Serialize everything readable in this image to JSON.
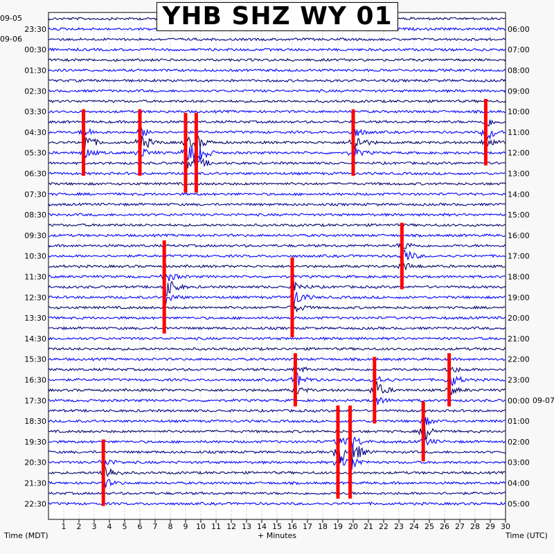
{
  "chart_data": {
    "type": "helicorder",
    "title": "YHB SHZ WY 01",
    "xlabel": "+ Minutes",
    "left_axis_label": "Time (MDT)",
    "right_axis_label": "Time (UTC)",
    "x_ticks": [
      "1",
      "2",
      "3",
      "4",
      "5",
      "6",
      "7",
      "8",
      "9",
      "10",
      "11",
      "12",
      "13",
      "14",
      "15",
      "16",
      "17",
      "18",
      "19",
      "20",
      "21",
      "22",
      "23",
      "24",
      "25",
      "26",
      "27",
      "28",
      "29",
      "30"
    ],
    "xlim": [
      0,
      30
    ],
    "date_labels_left": [
      "09-05",
      "09-06"
    ],
    "date_labels_right": [
      "09-07"
    ],
    "left_time_labels": [
      "23:30",
      "00:30",
      "01:30",
      "02:30",
      "03:30",
      "04:30",
      "05:30",
      "06:30",
      "07:30",
      "08:30",
      "09:30",
      "10:30",
      "11:30",
      "12:30",
      "13:30",
      "14:30",
      "15:30",
      "16:30",
      "17:30",
      "18:30",
      "19:30",
      "20:30",
      "21:30",
      "22:30"
    ],
    "right_time_labels": [
      "06:00",
      "07:00",
      "08:00",
      "09:00",
      "10:00",
      "11:00",
      "12:00",
      "13:00",
      "14:00",
      "15:00",
      "16:00",
      "17:00",
      "18:00",
      "19:00",
      "20:00",
      "21:00",
      "22:00",
      "23:00",
      "00:00",
      "01:00",
      "02:00",
      "03:00",
      "04:00",
      "05:00"
    ],
    "trace_colors": [
      "#000066",
      "#0000ff",
      "#00008b",
      "#0000ff"
    ],
    "trace_count": 48,
    "highlight_color": "#ff0000",
    "events": [
      {
        "minute": 2.3,
        "trace": 12,
        "amplitude": 1.0
      },
      {
        "minute": 6.0,
        "trace": 12,
        "amplitude": 1.0
      },
      {
        "minute": 9.0,
        "trace": 13,
        "amplitude": 1.2
      },
      {
        "minute": 9.7,
        "trace": 13,
        "amplitude": 1.2
      },
      {
        "minute": 20.0,
        "trace": 12,
        "amplitude": 1.0
      },
      {
        "minute": 28.7,
        "trace": 11,
        "amplitude": 1.0
      },
      {
        "minute": 7.6,
        "trace": 26,
        "amplitude": 1.4
      },
      {
        "minute": 16.0,
        "trace": 27,
        "amplitude": 1.2
      },
      {
        "minute": 23.2,
        "trace": 23,
        "amplitude": 1.0
      },
      {
        "minute": 16.2,
        "trace": 35,
        "amplitude": 0.8
      },
      {
        "minute": 21.4,
        "trace": 36,
        "amplitude": 1.0
      },
      {
        "minute": 26.3,
        "trace": 35,
        "amplitude": 0.8
      },
      {
        "minute": 24.6,
        "trace": 40,
        "amplitude": 0.9
      },
      {
        "minute": 19.0,
        "trace": 42,
        "amplitude": 1.4
      },
      {
        "minute": 19.8,
        "trace": 42,
        "amplitude": 1.4
      },
      {
        "minute": 3.6,
        "trace": 44,
        "amplitude": 1.0
      }
    ]
  }
}
